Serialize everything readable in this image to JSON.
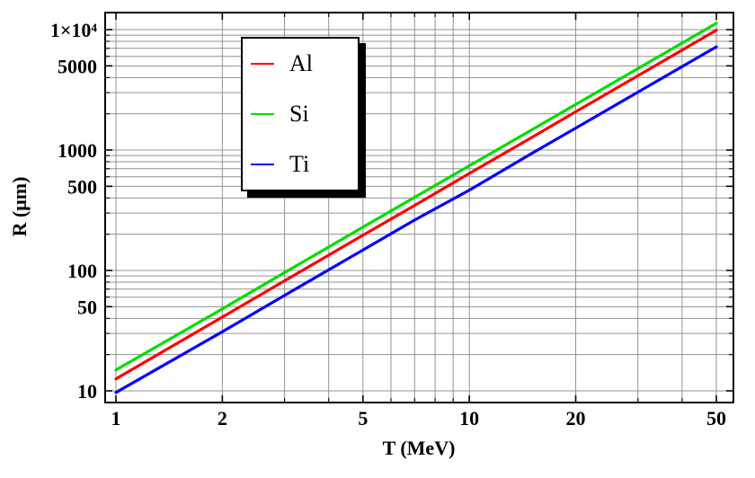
{
  "figure": {
    "background": "#ffffff",
    "frame_color": "#000000",
    "grid_color": "#909090"
  },
  "chart_data": {
    "type": "line",
    "title": "",
    "xlabel": "T (MeV)",
    "ylabel": "R (μm)",
    "x_scale": "log",
    "y_scale": "log",
    "xlim": [
      0.93,
      55.9
    ],
    "ylim": [
      8,
      13900
    ],
    "grid": true,
    "legend_position": "upper-left-inside",
    "x_ticks": {
      "major": [
        1,
        2,
        5,
        10,
        20,
        50
      ],
      "labels": [
        "1",
        "2",
        "5",
        "10",
        "20",
        "50"
      ],
      "minor": [
        3,
        4,
        6,
        7,
        8,
        9,
        30,
        40
      ]
    },
    "y_ticks": {
      "major": [
        10,
        50,
        100,
        500,
        1000,
        5000,
        10000
      ],
      "labels": [
        "10",
        "50",
        "100",
        "500",
        "1000",
        "5000",
        "1×10⁴"
      ],
      "minor": [
        20,
        30,
        40,
        60,
        70,
        80,
        90,
        200,
        300,
        400,
        600,
        700,
        800,
        900,
        2000,
        3000,
        4000,
        6000,
        7000,
        8000,
        9000
      ]
    },
    "x_gridlines": [
      1,
      2,
      3,
      4,
      5,
      6,
      7,
      8,
      9,
      10,
      20,
      30,
      40,
      50
    ],
    "y_gridlines": [
      10,
      20,
      30,
      40,
      50,
      60,
      70,
      80,
      90,
      100,
      200,
      300,
      400,
      500,
      600,
      700,
      800,
      900,
      1000,
      2000,
      3000,
      4000,
      5000,
      6000,
      7000,
      8000,
      9000,
      10000
    ],
    "series": [
      {
        "name": "Al",
        "color": "#ff0000",
        "points": [
          [
            1,
            12.6
          ],
          [
            2,
            41
          ],
          [
            3,
            82
          ],
          [
            5,
            196
          ],
          [
            7,
            347
          ],
          [
            10,
            640
          ],
          [
            15,
            1270
          ],
          [
            20,
            2080
          ],
          [
            30,
            4140
          ],
          [
            50,
            9900
          ]
        ]
      },
      {
        "name": "Si",
        "color": "#00dd00",
        "points": [
          [
            1,
            14.9
          ],
          [
            2,
            48
          ],
          [
            3,
            96
          ],
          [
            5,
            229
          ],
          [
            7,
            405
          ],
          [
            10,
            740
          ],
          [
            15,
            1470
          ],
          [
            20,
            2390
          ],
          [
            30,
            4750
          ],
          [
            50,
            11300
          ]
        ]
      },
      {
        "name": "Ti",
        "color": "#0000ff",
        "points": [
          [
            1,
            9.7
          ],
          [
            2,
            31
          ],
          [
            3,
            62
          ],
          [
            5,
            148
          ],
          [
            7,
            262
          ],
          [
            10,
            465
          ],
          [
            15,
            935
          ],
          [
            20,
            1520
          ],
          [
            30,
            3030
          ],
          [
            50,
            7200
          ]
        ]
      }
    ]
  }
}
